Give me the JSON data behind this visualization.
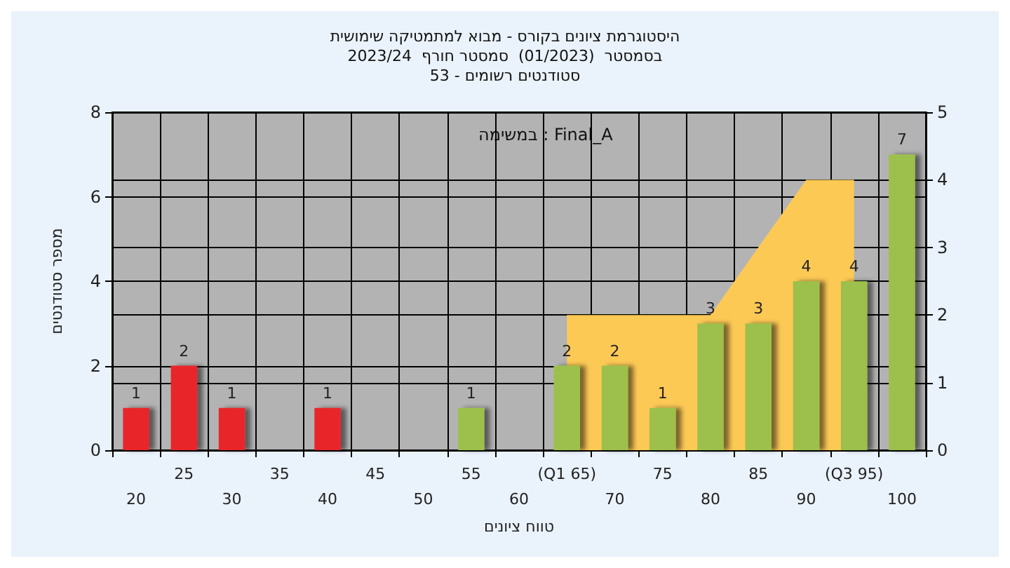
{
  "chart_data": {
    "type": "bar",
    "title": "היסטוגרמת ציונים בקורס - מבוא למתמטיקה שימושית\nבסמסטר  (01/2023)  סמסטר חורף  2023/24\nסטודנטים רשומים - 53",
    "xlabel": "טווח ציונים",
    "ylabel": "מספר סטודנטים",
    "annotations": [
      "במשימה : Final_A"
    ],
    "categories": [
      "20",
      "25",
      "30",
      "35",
      "40",
      "45",
      "50",
      "55",
      "60",
      "(Q1 65)",
      "70",
      "75",
      "80",
      "85",
      "90",
      "(Q3 95)",
      "100"
    ],
    "series": [
      {
        "type": "area",
        "axis": "y2",
        "color": "#fdc955",
        "values": [
          null,
          null,
          null,
          null,
          null,
          null,
          null,
          null,
          null,
          2,
          2,
          2,
          2,
          3,
          4,
          4,
          null
        ]
      },
      {
        "colors": [
          "#e8262b",
          "#e8262b",
          "#e8262b",
          "#e8262b",
          "#e8262b",
          "#e8262b",
          "#e8262b",
          "#9cc04c",
          "#9cc04c",
          "#9cc04c",
          "#9cc04c",
          "#9cc04c",
          "#9cc04c",
          "#9cc04c",
          "#9cc04c",
          "#9cc04c",
          "#9cc04c"
        ],
        "values": [
          1,
          2,
          1,
          0,
          1,
          0,
          0,
          1,
          0,
          2,
          2,
          1,
          3,
          3,
          4,
          4,
          7
        ],
        "value_labels": [
          "1",
          "2",
          "1",
          null,
          "1",
          null,
          null,
          "1",
          null,
          "2",
          "2",
          "1",
          "3",
          "3",
          "4",
          "4",
          "7"
        ]
      }
    ],
    "ylim": [
      0,
      8
    ],
    "yticks": [
      0,
      2,
      4,
      6,
      8
    ],
    "y2lim": [
      0,
      5
    ],
    "y2ticks": [
      0,
      1,
      2,
      3,
      4,
      5
    ],
    "grid": true
  }
}
